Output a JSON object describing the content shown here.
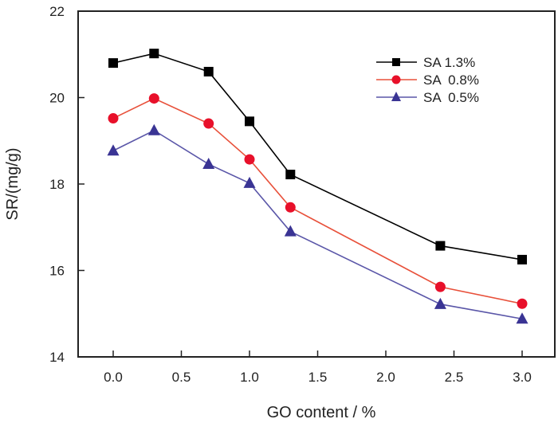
{
  "chart_data": {
    "type": "line",
    "title": "",
    "xlabel": "GO  content / %",
    "ylabel": "SR/(mg/g)",
    "xlim": [
      -0.25,
      3.25
    ],
    "ylim": [
      14,
      22
    ],
    "xticks": [
      0.0,
      0.5,
      1.0,
      1.5,
      2.0,
      2.5,
      3.0
    ],
    "xtick_labels": [
      "0.0",
      "0.5",
      "1.0",
      "1.5",
      "2.0",
      "2.5",
      "3.0"
    ],
    "yticks": [
      14,
      16,
      18,
      20,
      22
    ],
    "ytick_labels": [
      "14",
      "16",
      "18",
      "20",
      "22"
    ],
    "grid": false,
    "legend_position": "top-right",
    "x": [
      0.0,
      0.3,
      0.7,
      1.0,
      1.3,
      2.4,
      3.0
    ],
    "series": [
      {
        "name": "SA 1.3%",
        "marker": "square",
        "color": "#000000",
        "values": [
          20.8,
          21.02,
          20.6,
          19.45,
          18.22,
          16.57,
          16.25
        ]
      },
      {
        "name": "SA  0.8%",
        "marker": "circle",
        "color": "#e8102a",
        "line_color": "#e8503a",
        "values": [
          19.52,
          19.98,
          19.4,
          18.57,
          17.46,
          15.62,
          15.23
        ]
      },
      {
        "name": "SA  0.5%",
        "marker": "triangle",
        "color": "#3a3494",
        "line_color": "#5a56a8",
        "values": [
          18.77,
          19.24,
          18.46,
          18.02,
          16.9,
          15.22,
          14.88
        ]
      }
    ]
  }
}
